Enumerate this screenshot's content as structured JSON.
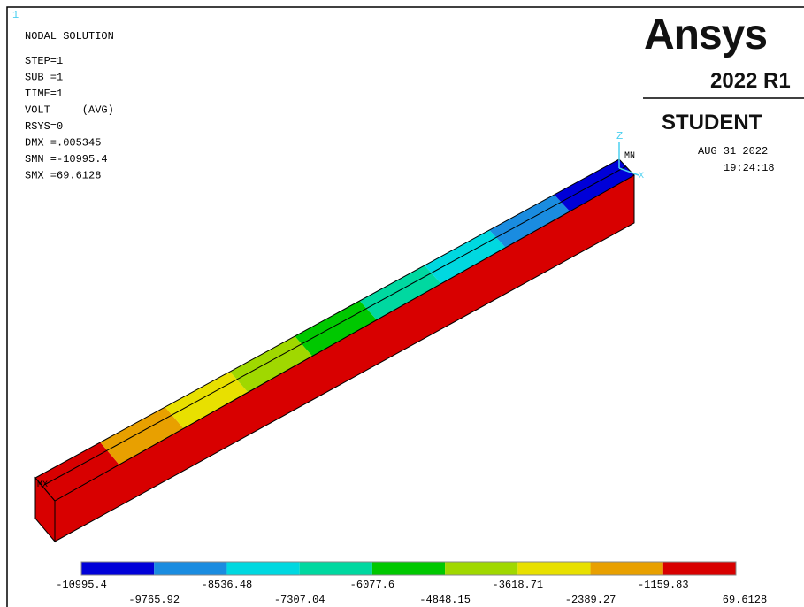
{
  "window_number": "1",
  "info": {
    "title": "NODAL SOLUTION",
    "lines": [
      "STEP=1",
      "SUB =1",
      "TIME=1",
      "VOLT     (AVG)",
      "RSYS=0",
      "DMX =.005345",
      "SMN =-10995.4",
      "SMX =69.6128"
    ]
  },
  "logo": {
    "brand": "Ansys",
    "version": "2022 R1",
    "edition": "STUDENT"
  },
  "timestamp": {
    "date": "AUG 31 2022",
    "time": "19:24:18"
  },
  "markers": {
    "min": "MN",
    "max": "MX"
  },
  "axes": {
    "z": "Z",
    "x": "X"
  },
  "legend": {
    "colors": [
      "#0000d8",
      "#1a8ce0",
      "#00d8e0",
      "#00d8a0",
      "#00c800",
      "#a0d800",
      "#e8e000",
      "#e8a000",
      "#d80000"
    ],
    "labels": [
      "-10995.4",
      "-9765.92",
      "-8536.48",
      "-7307.04",
      "-6077.6",
      "-4848.15",
      "-3618.71",
      "-2389.27",
      "-1159.83",
      "69.6128"
    ]
  }
}
